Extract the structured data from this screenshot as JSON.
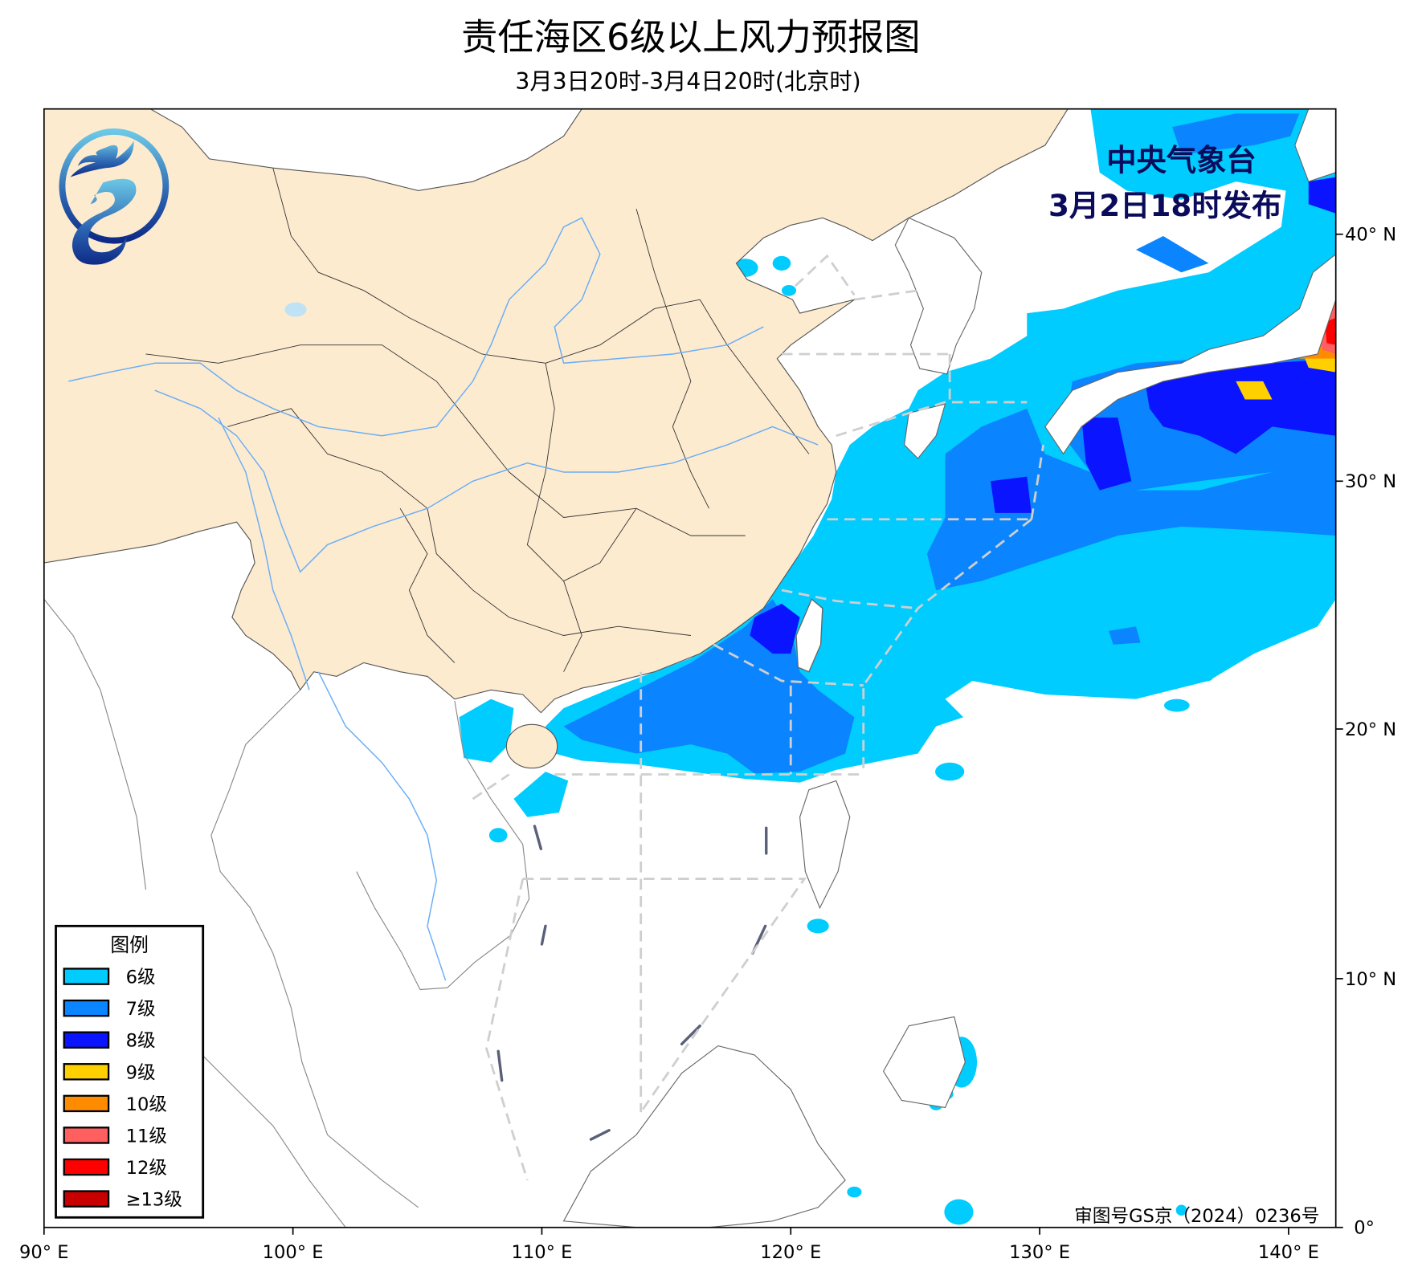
{
  "header": {
    "title": "责任海区6级以上风力预报图",
    "subtitle": "3月3日20时-3月4日20时(北京时)"
  },
  "issuer": {
    "name": "中央气象台",
    "issued": "3月2日18时发布",
    "color": "#0b0b5c"
  },
  "legend": {
    "title": "图例",
    "items": [
      {
        "label": "6级",
        "color": "#00CCFF"
      },
      {
        "label": "7级",
        "color": "#0A84FF"
      },
      {
        "label": "8级",
        "color": "#0A14FF"
      },
      {
        "label": "9级",
        "color": "#FFD000"
      },
      {
        "label": "10级",
        "color": "#FF8C00"
      },
      {
        "label": "11级",
        "color": "#FF5F5F"
      },
      {
        "label": "12级",
        "color": "#FF0000"
      },
      {
        "label": "≥13级",
        "color": "#C80000"
      }
    ]
  },
  "axes": {
    "lon_labels": [
      "90° E",
      "100° E",
      "110° E",
      "120° E",
      "130° E",
      "140° E"
    ],
    "lat_labels": [
      "0°",
      "10° N",
      "20° N",
      "30° N",
      "40° N"
    ]
  },
  "approval": "审图号GS京（2024）0236号",
  "colors": {
    "china_land": "#FDEBD0",
    "river": "#6AAEF5",
    "zone_line": "#CFCFCF"
  },
  "logo": {
    "icon": "cma-logo-icon"
  }
}
